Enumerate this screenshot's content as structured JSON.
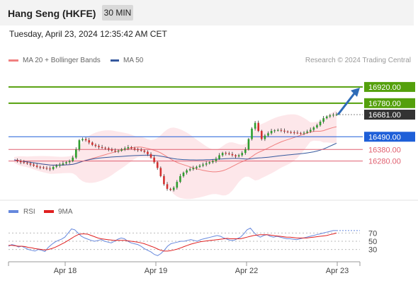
{
  "header": {
    "instrument": "Hang Seng (HKFE)",
    "timeframe": "30 MIN"
  },
  "timestamp": "Tuesday, April 23, 2024 12:35:42 AM CET",
  "legend": {
    "bb_label": "MA 20 + Bollinger Bands",
    "ma50_label": "MA 50",
    "bb_color": "#f08080",
    "ma50_color": "#35599e"
  },
  "credit": "Research © 2024 Trading Central",
  "colors": {
    "up": "#2e9e2e",
    "down": "#d33030",
    "resistance": "#54a00c",
    "support_pivot": "#1e5fd8",
    "support": "#e06070",
    "current": "#333333",
    "band_fill": "#fde3e6",
    "arrow": "#2f6cb8",
    "rsi": "#6688dd",
    "rsi_ma": "#e02020"
  },
  "chart_data": [
    {
      "type": "candlestick",
      "title": "Hang Seng (HKFE)",
      "timeframe": "30 MIN",
      "x_ticks": [
        "Apr 18",
        "Apr 19",
        "Apr 22",
        "Apr 23"
      ],
      "ylim": [
        15960,
        17060
      ],
      "levels": [
        {
          "value": 16920.0,
          "label": "16920.00",
          "kind": "resistance"
        },
        {
          "value": 16780.0,
          "label": "16780.00",
          "kind": "resistance"
        },
        {
          "value": 16681.0,
          "label": "16681.00",
          "kind": "current"
        },
        {
          "value": 16490.0,
          "label": "16490.00",
          "kind": "pivot"
        },
        {
          "value": 16380.0,
          "label": "16380.00",
          "kind": "support"
        },
        {
          "value": 16280.0,
          "label": "16280.00",
          "kind": "support"
        }
      ],
      "close_series": [
        16290,
        16280,
        16270,
        16265,
        16260,
        16250,
        16240,
        16230,
        16225,
        16220,
        16215,
        16210,
        16230,
        16240,
        16250,
        16260,
        16270,
        16280,
        16310,
        16380,
        16460,
        16470,
        16460,
        16440,
        16420,
        16410,
        16400,
        16395,
        16390,
        16380,
        16370,
        16365,
        16370,
        16380,
        16390,
        16400,
        16390,
        16380,
        16375,
        16370,
        16360,
        16340,
        16310,
        16270,
        16220,
        16150,
        16080,
        16040,
        16030,
        16050,
        16100,
        16150,
        16180,
        16200,
        16210,
        16220,
        16230,
        16240,
        16250,
        16260,
        16270,
        16280,
        16300,
        16330,
        16350,
        16345,
        16340,
        16330,
        16320,
        16330,
        16350,
        16380,
        16470,
        16560,
        16610,
        16540,
        16470,
        16500,
        16520,
        16540,
        16545,
        16548,
        16542,
        16535,
        16530,
        16528,
        16525,
        16522,
        16520,
        16525,
        16535,
        16550,
        16570,
        16590,
        16620,
        16650,
        16665,
        16675,
        16680,
        16681
      ],
      "annotations": [
        "Bullish arrow toward 16920.00"
      ]
    },
    {
      "type": "line",
      "title": "RSI",
      "series": [
        {
          "name": "RSI"
        },
        {
          "name": "9MA"
        }
      ],
      "y_ticks": [
        70,
        50,
        30
      ],
      "ylim": [
        0,
        100
      ],
      "rsi": [
        38,
        42,
        40,
        36,
        38,
        34,
        30,
        28,
        26,
        30,
        28,
        25,
        35,
        42,
        48,
        52,
        55,
        60,
        70,
        80,
        78,
        70,
        62,
        58,
        55,
        52,
        50,
        52,
        54,
        50,
        48,
        46,
        50,
        55,
        58,
        56,
        50,
        46,
        44,
        42,
        38,
        32,
        28,
        24,
        18,
        15,
        20,
        28,
        38,
        44,
        46,
        48,
        50,
        50,
        52,
        54,
        52,
        50,
        54,
        56,
        58,
        60,
        62,
        64,
        62,
        58,
        55,
        52,
        52,
        56,
        60,
        68,
        78,
        82,
        72,
        64,
        60,
        64,
        66,
        62,
        60,
        62,
        60,
        58,
        56,
        56,
        55,
        54,
        56,
        58,
        60,
        62,
        64,
        66,
        68,
        70,
        72,
        74,
        76,
        76
      ],
      "rsi_ma": [
        40,
        40,
        39,
        38,
        38,
        37,
        35,
        34,
        32,
        31,
        30,
        29,
        30,
        32,
        35,
        39,
        43,
        47,
        52,
        57,
        62,
        66,
        68,
        68,
        67,
        64,
        61,
        58,
        56,
        55,
        54,
        53,
        52,
        52,
        52,
        52,
        51,
        50,
        49,
        48,
        46,
        44,
        41,
        38,
        35,
        31,
        28,
        26,
        26,
        27,
        29,
        31,
        34,
        37,
        40,
        43,
        45,
        47,
        49,
        50,
        51,
        52,
        53,
        54,
        55,
        56,
        57,
        56,
        56,
        56,
        56,
        58,
        60,
        62,
        64,
        65,
        66,
        66,
        66,
        65,
        64,
        63,
        62,
        61,
        60,
        60,
        59,
        58,
        58,
        58,
        58,
        59,
        60,
        61,
        62,
        63,
        64,
        66,
        68,
        70
      ]
    }
  ]
}
